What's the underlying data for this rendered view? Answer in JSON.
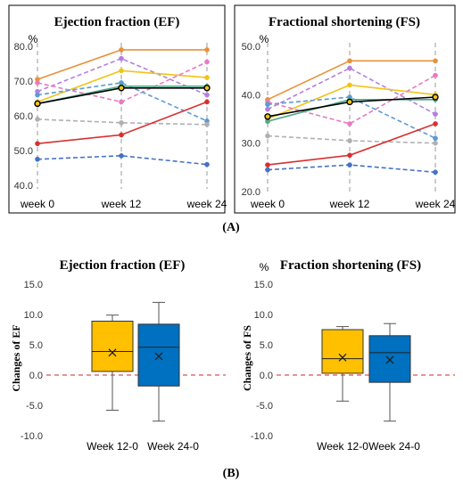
{
  "panel_labels": {
    "a": "(A)",
    "b": "(B)"
  },
  "chart_data": [
    {
      "type": "line",
      "title": "Ejection fraction (EF)",
      "unit_label": "%",
      "x": [
        "week 0",
        "week 12",
        "week 24"
      ],
      "ylim": [
        40,
        80
      ],
      "yticks": [
        "40.0",
        "50.0",
        "60.0",
        "70.0",
        "80.0"
      ],
      "grid": "vertical dashed",
      "series": [
        {
          "color": "#e8923a",
          "dashed": false,
          "marker": "circle",
          "values": [
            70.5,
            79,
            79
          ]
        },
        {
          "color": "#b47fe0",
          "dashed": true,
          "marker": "circle",
          "values": [
            67,
            76.5,
            66
          ]
        },
        {
          "color": "#f0c418",
          "dashed": false,
          "marker": "circle",
          "values": [
            64,
            73,
            71
          ]
        },
        {
          "color": "#e87bc0",
          "dashed": true,
          "marker": "circle",
          "values": [
            69.5,
            64,
            75.5
          ]
        },
        {
          "color": "#5b9bd5",
          "dashed": true,
          "marker": "circle",
          "values": [
            66,
            69.5,
            58.5
          ]
        },
        {
          "color": "#4fa889",
          "dashed": false,
          "marker": "circle",
          "values": [
            63.5,
            68.5,
            68.5
          ]
        },
        {
          "color": "#000000",
          "dashed": false,
          "marker": "circle",
          "values": [
            63.5,
            68,
            68
          ]
        },
        {
          "color": "#b0b0b0",
          "dashed": true,
          "marker": "circle",
          "values": [
            59,
            58,
            57.5
          ]
        },
        {
          "color": "#d83030",
          "dashed": false,
          "marker": "circle",
          "values": [
            52,
            54.5,
            64
          ]
        },
        {
          "color": "#4472c4",
          "dashed": true,
          "marker": "circle",
          "values": [
            47.5,
            48.5,
            46
          ]
        }
      ]
    },
    {
      "type": "line",
      "title": "Fractional shortening (FS)",
      "unit_label": "%",
      "x": [
        "week 0",
        "week 12",
        "week 24"
      ],
      "ylim": [
        20,
        50
      ],
      "yticks": [
        "20.0",
        "30.0",
        "40.0",
        "50.0"
      ],
      "grid": "vertical dashed",
      "series": [
        {
          "color": "#e8923a",
          "dashed": false,
          "marker": "circle",
          "values": [
            39,
            47,
            47
          ]
        },
        {
          "color": "#b47fe0",
          "dashed": true,
          "marker": "circle",
          "values": [
            37,
            45.5,
            36
          ]
        },
        {
          "color": "#f0c418",
          "dashed": false,
          "marker": "circle",
          "values": [
            35,
            42,
            40
          ]
        },
        {
          "color": "#e87bc0",
          "dashed": true,
          "marker": "circle",
          "values": [
            38.5,
            34,
            44
          ]
        },
        {
          "color": "#5b9bd5",
          "dashed": true,
          "marker": "circle",
          "values": [
            38,
            39.5,
            31
          ]
        },
        {
          "color": "#4fa889",
          "dashed": false,
          "marker": "circle",
          "values": [
            34.5,
            39,
            39
          ]
        },
        {
          "color": "#000000",
          "dashed": false,
          "marker": "circle",
          "values": [
            35.5,
            38.5,
            39.5
          ]
        },
        {
          "color": "#b0b0b0",
          "dashed": true,
          "marker": "circle",
          "values": [
            31.5,
            30.5,
            30
          ]
        },
        {
          "color": "#d83030",
          "dashed": false,
          "marker": "circle",
          "values": [
            25.5,
            27.5,
            34
          ]
        },
        {
          "color": "#4472c4",
          "dashed": true,
          "marker": "circle",
          "values": [
            24.5,
            25.5,
            24
          ]
        }
      ]
    },
    {
      "type": "box",
      "title": "Ejection fraction (EF)",
      "ylabel": "Changes of EF",
      "categories": [
        "Week 12-0",
        "Week 24-0"
      ],
      "ylim": [
        -10,
        15
      ],
      "yticks": [
        "-10.0",
        "-5.0",
        "0.0",
        "5.0",
        "10.0",
        "15.0"
      ],
      "reference_line": 0,
      "boxes": [
        {
          "color": "#ffc000",
          "min": -5.8,
          "q1": 0.6,
          "median": 3.9,
          "q3": 8.9,
          "max": 9.9,
          "mean": 3.7
        },
        {
          "color": "#0070c0",
          "min": -7.6,
          "q1": -1.8,
          "median": 4.6,
          "q3": 8.4,
          "max": 12.0,
          "mean": 3.1
        }
      ]
    },
    {
      "type": "box",
      "title": "Fraction shortening (FS)",
      "unit_label": "%",
      "ylabel": "Changes of FS",
      "categories": [
        "Week 12-0",
        "Week 24-0"
      ],
      "ylim": [
        -10,
        15
      ],
      "yticks": [
        "-10.0",
        "-5.0",
        "0.0",
        "5.0",
        "10.0",
        "15.0"
      ],
      "reference_line": 0,
      "boxes": [
        {
          "color": "#ffc000",
          "min": -4.3,
          "q1": 0.3,
          "median": 2.7,
          "q3": 7.5,
          "max": 8.0,
          "mean": 2.9
        },
        {
          "color": "#0070c0",
          "min": -7.6,
          "q1": -1.2,
          "median": 3.7,
          "q3": 6.5,
          "max": 8.5,
          "mean": 2.5
        }
      ]
    }
  ]
}
